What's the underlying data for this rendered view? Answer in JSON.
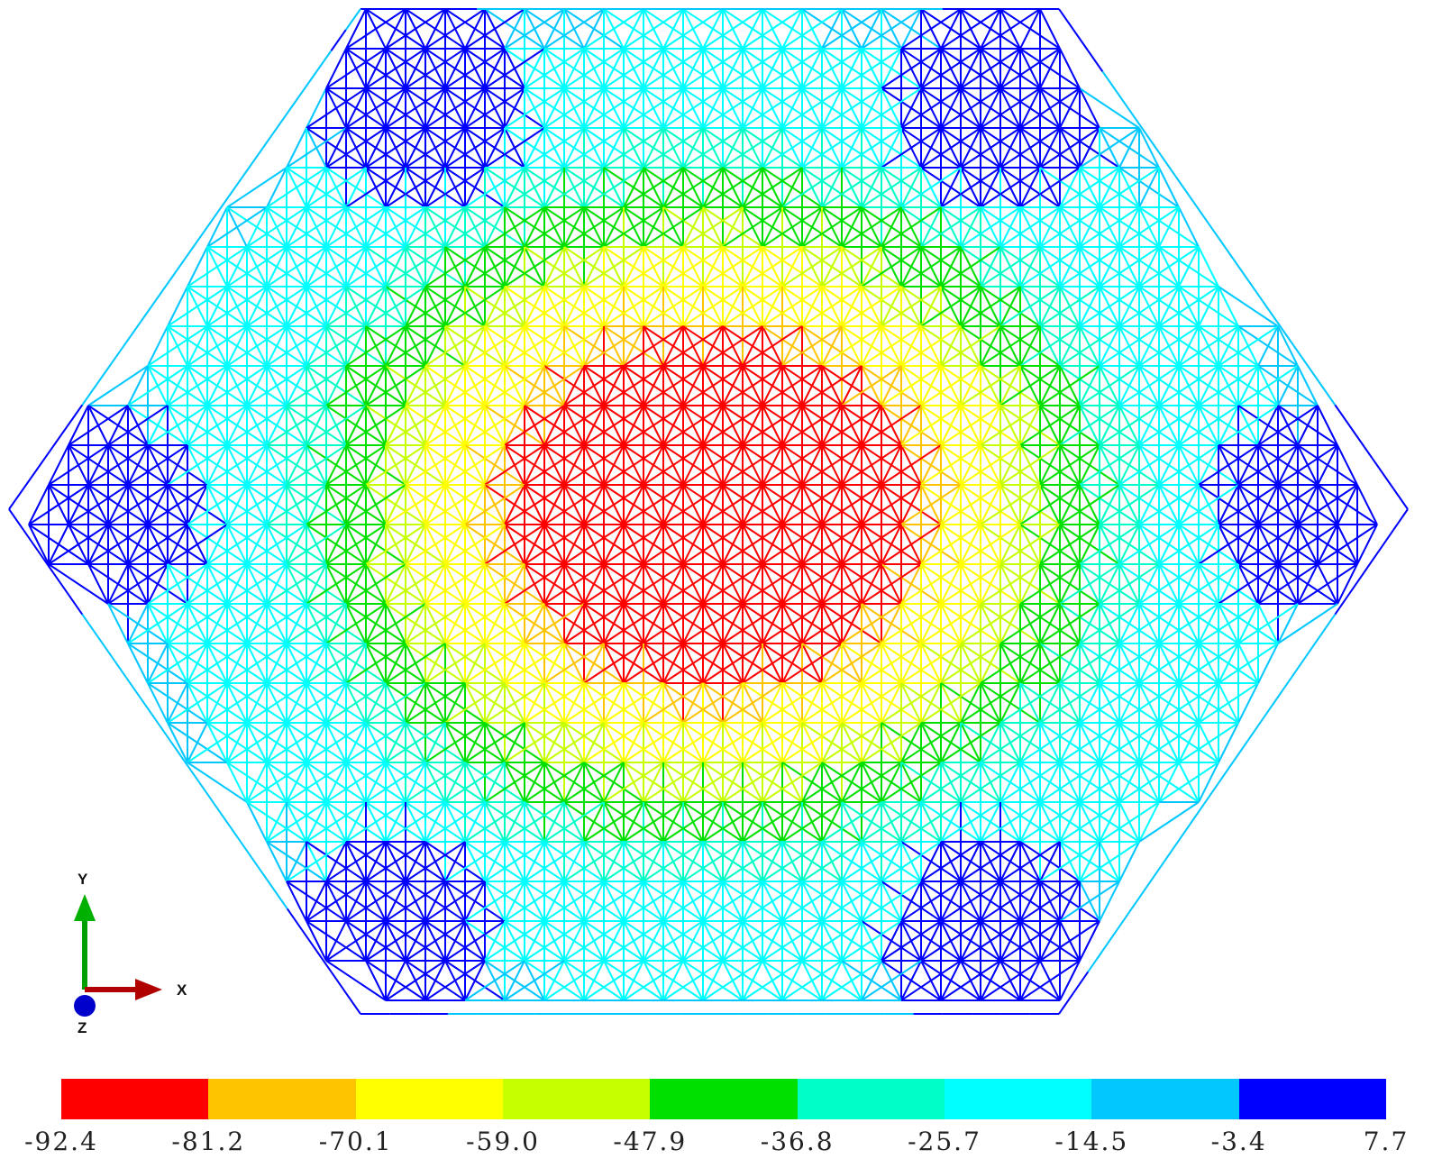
{
  "legend": {
    "colors": [
      "#ff0000",
      "#ffc400",
      "#ffff00",
      "#c6ff00",
      "#00e000",
      "#00ffc8",
      "#00ffff",
      "#00c8ff",
      "#0000ff"
    ],
    "ticks": [
      "-92.4",
      "-81.2",
      "-70.1",
      "-59.0",
      "-47.9",
      "-36.8",
      "-25.7",
      "-14.5",
      "-3.4",
      "7.7"
    ]
  },
  "triad": {
    "x_label": "X",
    "y_label": "Y",
    "z_label": "Z",
    "x_color": "#b00000",
    "y_color": "#00a000",
    "z_color": "#0000cc"
  },
  "mesh": {
    "shape": "hexagonal-grid-structure",
    "min_value": -92.4,
    "max_value": 7.7
  }
}
